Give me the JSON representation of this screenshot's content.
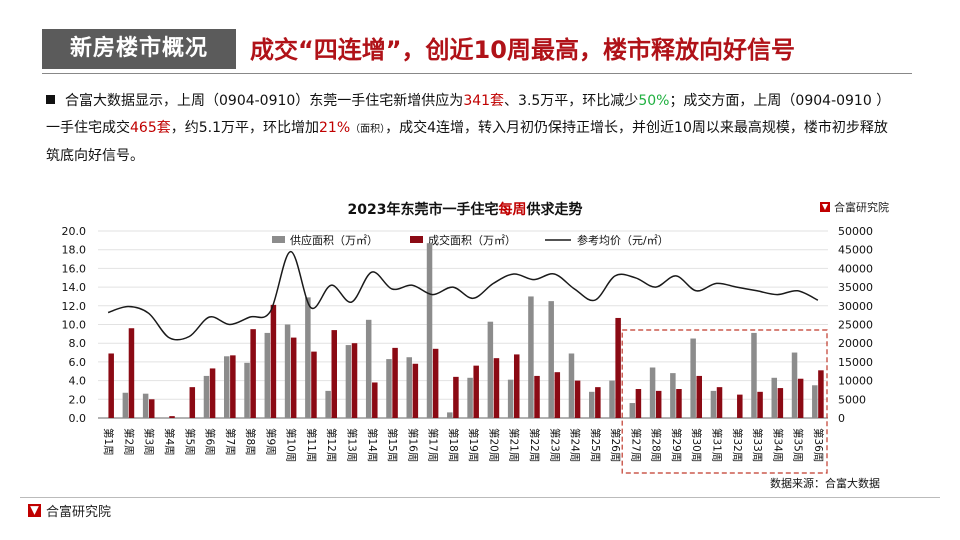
{
  "header": {
    "section_title": "新房楼市概况",
    "headline": "成交“四连增”，创近10周最高，楼市释放向好信号"
  },
  "paragraph": {
    "parts": [
      {
        "text": "合富大数据显示，上周（0904-0910）东莞一手住宅新增供应为",
        "style": ""
      },
      {
        "text": "341套",
        "style": "red"
      },
      {
        "text": "、3.5万平，环比减少",
        "style": ""
      },
      {
        "text": "50%",
        "style": "green"
      },
      {
        "text": "；成交方面，上周（0904-0910 ）一手住宅成交",
        "style": ""
      },
      {
        "text": "465套",
        "style": "red"
      },
      {
        "text": "，约5.1万平，环比增加",
        "style": ""
      },
      {
        "text": "21%",
        "style": "red"
      },
      {
        "text": "（面积）",
        "style": "small"
      },
      {
        "text": "，成交4连增，转入月初仍保持正增长，并创近10周以来最高规模，楼市初步释放筑底向好信号。",
        "style": ""
      }
    ]
  },
  "chart_brand": "合富研究院",
  "source_note": "数据来源：合富大数据",
  "footer_brand": "合富研究院",
  "colors": {
    "supply": "#8c8c8c",
    "deal": "#8b0a14",
    "price": "#1a1a1a",
    "highlight": "#c0392b",
    "accent": "#b01218"
  },
  "chart_data": {
    "type": "bar",
    "title_parts": [
      {
        "text": "2023年东莞市一手住宅",
        "style": ""
      },
      {
        "text": "每周",
        "style": "red"
      },
      {
        "text": "供求走势",
        "style": ""
      }
    ],
    "categories": [
      "第1周",
      "第2周",
      "第3周",
      "第4周",
      "第5周",
      "第6周",
      "第7周",
      "第8周",
      "第9周",
      "第10周",
      "第11周",
      "第12周",
      "第13周",
      "第14周",
      "第15周",
      "第16周",
      "第17周",
      "第18周",
      "第19周",
      "第20周",
      "第21周",
      "第22周",
      "第23周",
      "第24周",
      "第25周",
      "第26周",
      "第27周",
      "第28周",
      "第29周",
      "第30周",
      "第31周",
      "第32周",
      "第33周",
      "第34周",
      "第35周",
      "第36周"
    ],
    "series": [
      {
        "name": "供应面积（万㎡）",
        "axis": "left",
        "kind": "bar",
        "values": [
          0,
          2.7,
          2.6,
          0,
          0,
          4.5,
          6.6,
          5.9,
          9.1,
          10.0,
          12.9,
          2.9,
          7.8,
          10.5,
          6.3,
          6.5,
          18.7,
          0.6,
          4.3,
          10.3,
          4.1,
          13.0,
          12.5,
          6.9,
          2.8,
          4.0,
          1.6,
          5.4,
          4.8,
          8.5,
          2.9,
          0,
          9.1,
          4.3,
          7.0,
          3.5
        ]
      },
      {
        "name": "成交面积（万㎡）",
        "axis": "left",
        "kind": "bar",
        "values": [
          6.9,
          9.6,
          2.0,
          0.2,
          3.3,
          5.3,
          6.7,
          9.5,
          12.1,
          8.6,
          7.1,
          9.4,
          8.0,
          3.8,
          7.5,
          5.8,
          7.4,
          4.4,
          5.6,
          6.4,
          6.8,
          4.5,
          4.9,
          4.0,
          3.3,
          10.7,
          3.1,
          2.9,
          3.1,
          4.5,
          3.3,
          2.5,
          2.8,
          3.2,
          4.2,
          5.1
        ]
      },
      {
        "name": "参考均价（元/㎡）",
        "axis": "right",
        "kind": "line",
        "values": [
          28200,
          29800,
          28000,
          21500,
          21800,
          27000,
          25000,
          27000,
          28500,
          44500,
          29500,
          35500,
          31000,
          39000,
          34500,
          35500,
          33000,
          35000,
          32000,
          36000,
          38500,
          37000,
          38500,
          34500,
          31500,
          38000,
          37500,
          35000,
          38000,
          34000,
          36000,
          35000,
          34000,
          33000,
          34000,
          31500
        ]
      }
    ],
    "left_axis": {
      "min": 0,
      "max": 20,
      "ticks": [
        "0.0",
        "2.0",
        "4.0",
        "6.0",
        "8.0",
        "10.0",
        "12.0",
        "14.0",
        "16.0",
        "18.0",
        "20.0"
      ]
    },
    "right_axis": {
      "min": 0,
      "max": 50000,
      "ticks": [
        "0",
        "5000",
        "10000",
        "15000",
        "20000",
        "25000",
        "30000",
        "35000",
        "40000",
        "45000",
        "50000"
      ]
    },
    "highlight_range": [
      "第27周",
      "第36周"
    ],
    "legend_placement": "top"
  }
}
